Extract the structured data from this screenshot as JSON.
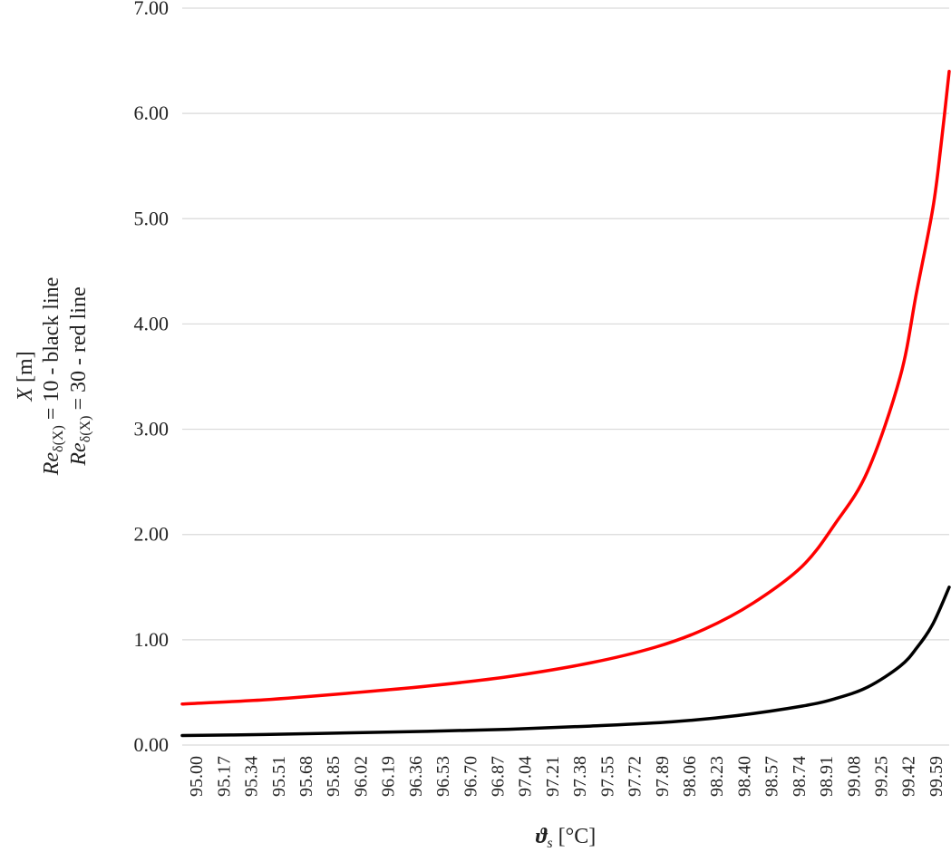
{
  "chart_data": {
    "type": "line",
    "xlabel": {
      "symbol": "ϑ",
      "sub": "s",
      "unit": " [°C]"
    },
    "ylabel_lines": [
      {
        "italic": "X",
        "text": " [m]"
      },
      {
        "italic": "Re",
        "sub": "δ(X)",
        "text": " = 10 - black line"
      },
      {
        "italic": "Re",
        "sub": "δ(X)",
        "text": " = 30 - red line"
      }
    ],
    "ylim": [
      0,
      7
    ],
    "yticks": [
      "0.00",
      "1.00",
      "2.00",
      "3.00",
      "4.00",
      "5.00",
      "6.00",
      "7.00"
    ],
    "xlim": [
      95.0,
      99.7
    ],
    "xtick_labels": [
      "95.00",
      "95.17",
      "95.34",
      "95.51",
      "95.68",
      "95.85",
      "96.02",
      "96.19",
      "96.36",
      "96.53",
      "96.70",
      "96.87",
      "97.04",
      "97.21",
      "97.38",
      "97.55",
      "97.72",
      "97.89",
      "98.06",
      "98.23",
      "98.40",
      "98.57",
      "98.74",
      "98.91",
      "99.08",
      "99.25",
      "99.42",
      "99.59"
    ],
    "grid": "horizontal",
    "series": [
      {
        "name": "Re δ(X) = 10 - black line",
        "color": "#000000",
        "x": [
          95.0,
          95.5,
          96.0,
          96.5,
          97.0,
          97.5,
          98.0,
          98.4,
          98.8,
          99.0,
          99.2,
          99.4,
          99.5,
          99.6,
          99.7
        ],
        "y": [
          0.09,
          0.1,
          0.115,
          0.13,
          0.15,
          0.18,
          0.22,
          0.28,
          0.37,
          0.44,
          0.55,
          0.75,
          0.92,
          1.15,
          1.5
        ]
      },
      {
        "name": "Re δ(X) = 30 - red line",
        "color": "#ff0000",
        "x": [
          95.0,
          95.5,
          96.0,
          96.5,
          97.0,
          97.5,
          97.9,
          98.2,
          98.5,
          98.8,
          99.0,
          99.2,
          99.4,
          99.5,
          99.6,
          99.65,
          99.7
        ],
        "y": [
          0.39,
          0.43,
          0.49,
          0.56,
          0.65,
          0.78,
          0.93,
          1.1,
          1.35,
          1.7,
          2.1,
          2.6,
          3.5,
          4.3,
          5.1,
          5.7,
          6.4
        ]
      }
    ]
  }
}
